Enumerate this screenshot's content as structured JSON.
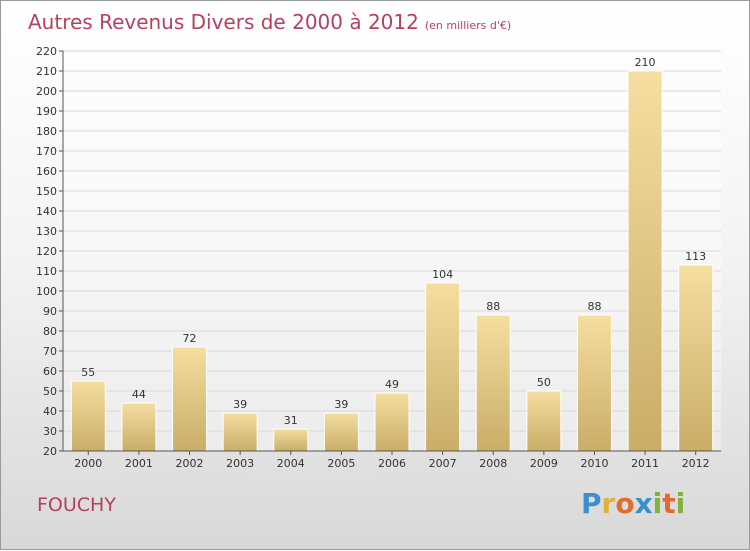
{
  "title": "Autres Revenus Divers de 2000 à 2012",
  "unit": "(en milliers d'€)",
  "commune": "FOUCHY",
  "logo": {
    "letters": [
      "P",
      "r",
      "o",
      "x",
      "i",
      "t",
      "i"
    ],
    "colors": [
      "#3a8fd0",
      "#e0b23a",
      "#e36a2e",
      "#3a8fd0",
      "#7fb13d",
      "#e36a2e",
      "#7fb13d"
    ]
  },
  "colors": {
    "bar_top": "#f5dea0",
    "bar_bottom": "#c9ad68",
    "title": "#b8405e",
    "grid": "#d8d8d8"
  },
  "chart_data": {
    "type": "bar",
    "categories": [
      "2000",
      "2001",
      "2002",
      "2003",
      "2004",
      "2005",
      "2006",
      "2007",
      "2008",
      "2009",
      "2010",
      "2011",
      "2012"
    ],
    "values": [
      55,
      44,
      72,
      39,
      31,
      39,
      49,
      104,
      88,
      50,
      88,
      210,
      113
    ],
    "ylim": [
      20,
      220
    ],
    "yticks": [
      20,
      30,
      40,
      50,
      60,
      70,
      80,
      90,
      100,
      110,
      120,
      130,
      140,
      150,
      160,
      170,
      180,
      190,
      200,
      210,
      220
    ],
    "grid": true,
    "xlabel": "",
    "ylabel": ""
  }
}
